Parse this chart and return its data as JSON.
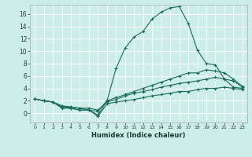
{
  "xlabel": "Humidex (Indice chaleur)",
  "bg_color": "#cceee8",
  "line_color": "#1a6b5a",
  "grid_color": "#ffffff",
  "xlim": [
    -0.5,
    23.5
  ],
  "ylim": [
    -1.5,
    17.5
  ],
  "xticks": [
    0,
    1,
    2,
    3,
    4,
    5,
    6,
    7,
    8,
    9,
    10,
    11,
    12,
    13,
    14,
    15,
    16,
    17,
    18,
    19,
    20,
    21,
    22,
    23
  ],
  "yticks": [
    0,
    2,
    4,
    6,
    8,
    10,
    12,
    14,
    16
  ],
  "line1_x": [
    0,
    1,
    2,
    3,
    4,
    5,
    6,
    7,
    8,
    9,
    10,
    11,
    12,
    13,
    14,
    15,
    16,
    17,
    18,
    19,
    20,
    21,
    22,
    23
  ],
  "line1_y": [
    2.3,
    2.0,
    1.8,
    0.8,
    0.8,
    0.5,
    0.5,
    0.3,
    2.0,
    7.2,
    10.5,
    12.3,
    13.2,
    15.2,
    16.3,
    17.0,
    17.2,
    14.5,
    10.2,
    8.0,
    7.8,
    5.5,
    4.2,
    4.0
  ],
  "line2_x": [
    0,
    1,
    2,
    3,
    4,
    5,
    6,
    7,
    8,
    9,
    10,
    11,
    12,
    13,
    14,
    15,
    16,
    17,
    18,
    19,
    20,
    21,
    22,
    23
  ],
  "line2_y": [
    2.3,
    2.0,
    1.8,
    1.0,
    1.0,
    0.8,
    0.5,
    -0.3,
    2.0,
    2.5,
    3.0,
    3.5,
    4.0,
    4.5,
    5.0,
    5.5,
    6.0,
    6.5,
    6.5,
    7.0,
    6.8,
    6.5,
    5.5,
    4.3
  ],
  "line3_x": [
    0,
    1,
    2,
    3,
    4,
    5,
    6,
    7,
    8,
    9,
    10,
    11,
    12,
    13,
    14,
    15,
    16,
    17,
    18,
    19,
    20,
    21,
    22,
    23
  ],
  "line3_y": [
    2.3,
    2.0,
    1.8,
    1.2,
    1.0,
    0.8,
    0.8,
    0.5,
    1.8,
    2.2,
    2.8,
    3.2,
    3.5,
    3.8,
    4.2,
    4.5,
    4.8,
    5.0,
    5.2,
    5.5,
    5.8,
    5.5,
    5.2,
    4.2
  ],
  "line4_x": [
    0,
    1,
    2,
    3,
    4,
    5,
    6,
    7,
    8,
    9,
    10,
    11,
    12,
    13,
    14,
    15,
    16,
    17,
    18,
    19,
    20,
    21,
    22,
    23
  ],
  "line4_y": [
    2.3,
    2.0,
    1.8,
    1.0,
    0.8,
    0.5,
    0.5,
    -0.5,
    1.5,
    1.8,
    2.0,
    2.2,
    2.5,
    2.8,
    3.0,
    3.2,
    3.5,
    3.5,
    3.8,
    4.0,
    4.0,
    4.2,
    4.0,
    3.8
  ]
}
